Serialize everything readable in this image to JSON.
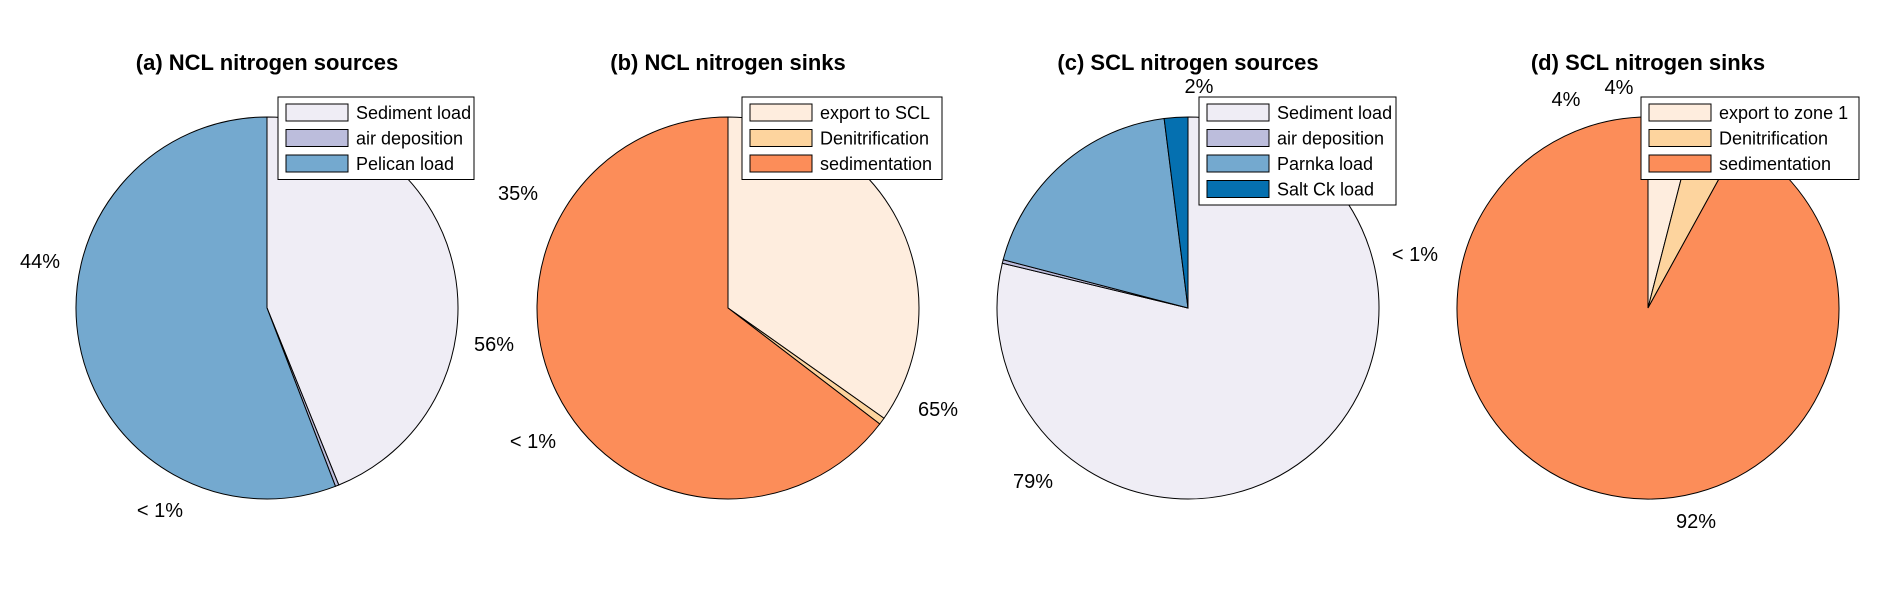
{
  "chart_data": [
    {
      "type": "pie",
      "title": "(a) NCL nitrogen sources",
      "legend_position": "top-right",
      "slices": [
        {
          "name": "Sediment load",
          "value": 44,
          "label": "44%",
          "color": "#efedf5"
        },
        {
          "name": "air deposition",
          "value": 0.3,
          "label": "< 1%",
          "color": "#bcbddc"
        },
        {
          "name": "Pelican load",
          "value": 56,
          "label": "56%",
          "color": "#74a9cf"
        }
      ]
    },
    {
      "type": "pie",
      "title": "(b) NCL nitrogen sinks",
      "legend_position": "top-right",
      "slices": [
        {
          "name": "export to SCL",
          "value": 35,
          "label": "35%",
          "color": "#feedde"
        },
        {
          "name": "Denitrification",
          "value": 0.6,
          "label": "< 1%",
          "color": "#fdd49e"
        },
        {
          "name": "sedimentation",
          "value": 65,
          "label": "65%",
          "color": "#fc8d59"
        }
      ]
    },
    {
      "type": "pie",
      "title": "(c) SCL nitrogen sources",
      "legend_position": "top-right",
      "slices": [
        {
          "name": "Sediment load",
          "value": 79,
          "label": "79%",
          "color": "#efedf5"
        },
        {
          "name": "air deposition",
          "value": 0.3,
          "label": "< 1%",
          "color": "#bcbddc"
        },
        {
          "name": "Parnka load",
          "value": 19,
          "label": "",
          "color": "#74a9cf"
        },
        {
          "name": "Salt Ck load",
          "value": 2,
          "label": "2%",
          "color": "#0570b0"
        }
      ]
    },
    {
      "type": "pie",
      "title": "(d) SCL nitrogen sinks",
      "legend_position": "top-right",
      "slices": [
        {
          "name": "export to zone 1",
          "value": 4,
          "label": "4%",
          "color": "#feedde"
        },
        {
          "name": "Denitrification",
          "value": 4,
          "label": "4%",
          "color": "#fdd49e"
        },
        {
          "name": "sedimentation",
          "value": 92,
          "label": "92%",
          "color": "#fc8d59"
        }
      ]
    }
  ]
}
